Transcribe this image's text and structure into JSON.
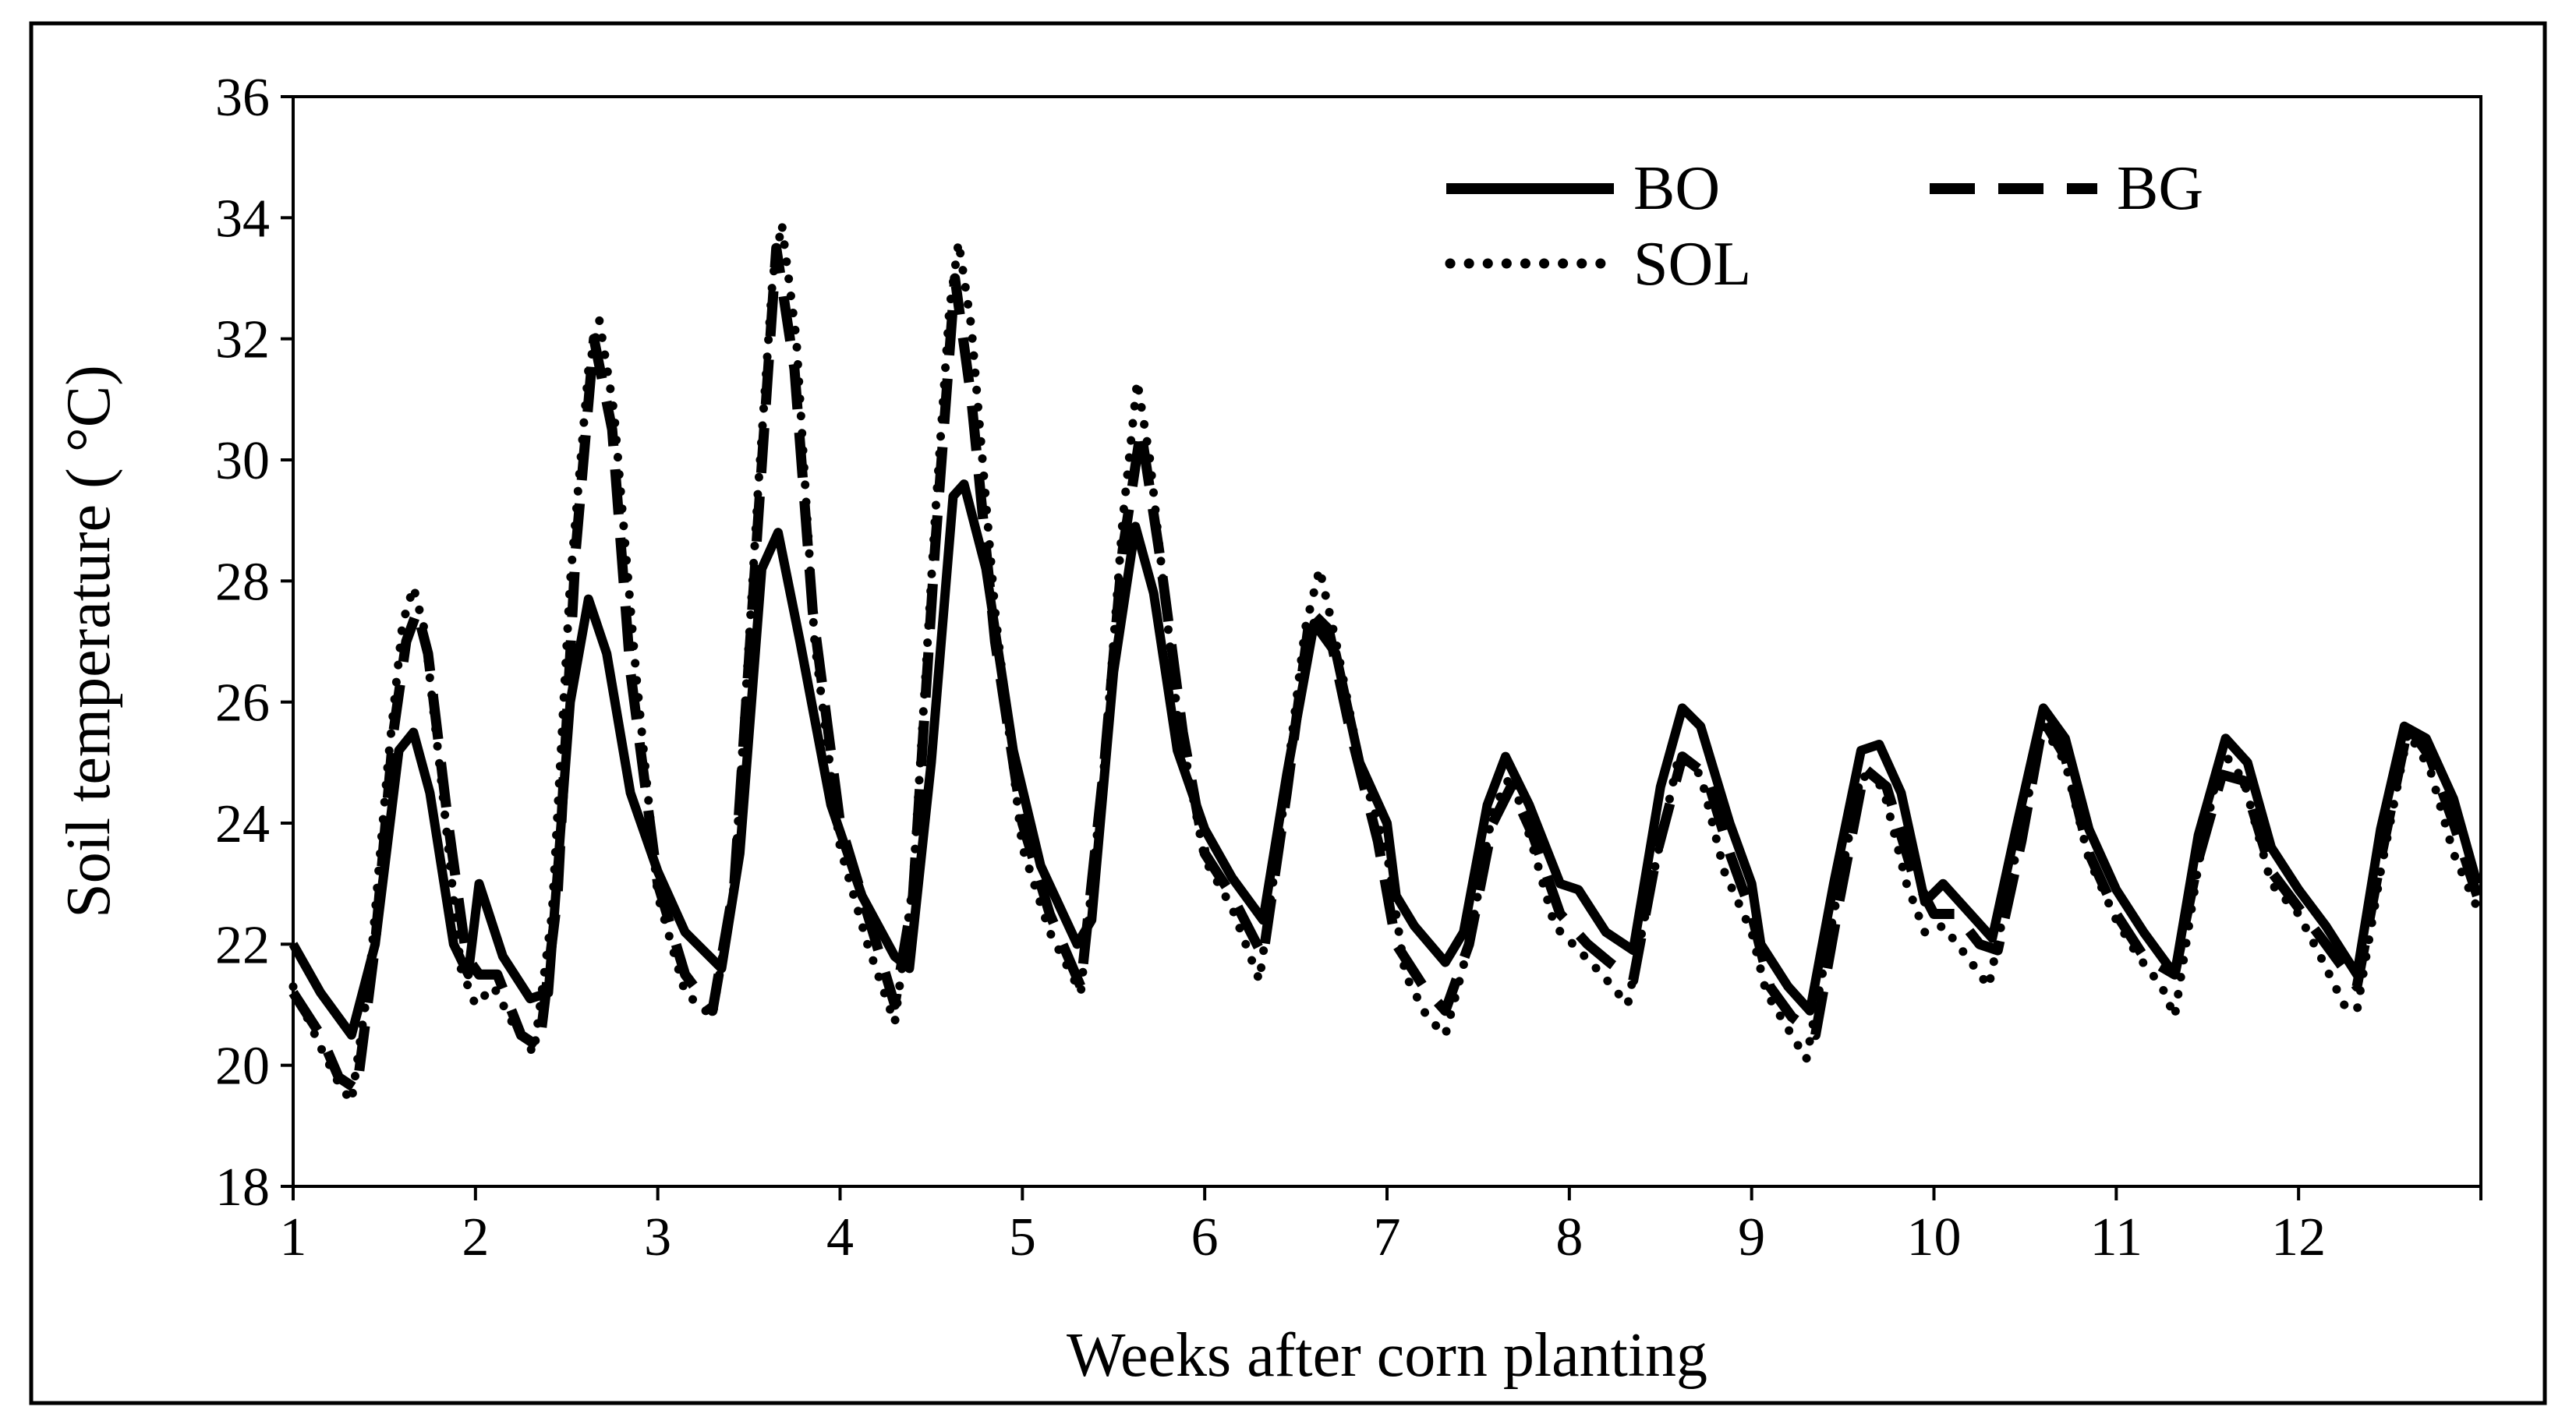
{
  "chart_data": {
    "type": "line",
    "title": "",
    "xlabel": "Weeks after corn planting",
    "ylabel": "Soil temperature ( °C)",
    "xlim": [
      1,
      13
    ],
    "ylim": [
      18,
      36
    ],
    "xticks": [
      1,
      2,
      3,
      4,
      5,
      6,
      7,
      8,
      9,
      10,
      11,
      12
    ],
    "yticks": [
      18,
      20,
      22,
      24,
      26,
      28,
      30,
      32,
      34,
      36
    ],
    "legend": "top-right",
    "series": [
      {
        "name": "BO",
        "style": "solid",
        "points": [
          [
            1.0,
            22.0
          ],
          [
            1.15,
            21.2
          ],
          [
            1.32,
            20.5
          ],
          [
            1.45,
            22.0
          ],
          [
            1.58,
            25.2
          ],
          [
            1.66,
            25.5
          ],
          [
            1.75,
            24.5
          ],
          [
            1.88,
            22.0
          ],
          [
            1.96,
            21.5
          ],
          [
            2.02,
            23.0
          ],
          [
            2.15,
            21.8
          ],
          [
            2.3,
            21.1
          ],
          [
            2.4,
            21.2
          ],
          [
            2.52,
            26.0
          ],
          [
            2.62,
            27.7
          ],
          [
            2.72,
            26.8
          ],
          [
            2.85,
            24.5
          ],
          [
            3.0,
            23.2
          ],
          [
            3.15,
            22.2
          ],
          [
            3.35,
            21.6
          ],
          [
            3.45,
            23.5
          ],
          [
            3.57,
            28.2
          ],
          [
            3.66,
            28.8
          ],
          [
            3.78,
            27.0
          ],
          [
            3.95,
            24.3
          ],
          [
            4.12,
            22.8
          ],
          [
            4.3,
            21.8
          ],
          [
            4.38,
            21.6
          ],
          [
            4.5,
            25.0
          ],
          [
            4.62,
            29.4
          ],
          [
            4.68,
            29.6
          ],
          [
            4.8,
            28.2
          ],
          [
            4.95,
            25.2
          ],
          [
            5.1,
            23.3
          ],
          [
            5.3,
            22.0
          ],
          [
            5.38,
            22.4
          ],
          [
            5.5,
            26.5
          ],
          [
            5.62,
            28.9
          ],
          [
            5.72,
            27.8
          ],
          [
            5.85,
            25.2
          ],
          [
            6.0,
            23.9
          ],
          [
            6.15,
            23.1
          ],
          [
            6.32,
            22.4
          ],
          [
            6.45,
            24.8
          ],
          [
            6.6,
            27.3
          ],
          [
            6.72,
            26.8
          ],
          [
            6.85,
            25.0
          ],
          [
            7.0,
            24.0
          ],
          [
            7.05,
            22.8
          ],
          [
            7.15,
            22.3
          ],
          [
            7.32,
            21.7
          ],
          [
            7.42,
            22.2
          ],
          [
            7.55,
            24.3
          ],
          [
            7.65,
            25.1
          ],
          [
            7.78,
            24.3
          ],
          [
            7.95,
            23.0
          ],
          [
            8.05,
            22.9
          ],
          [
            8.2,
            22.2
          ],
          [
            8.35,
            21.9
          ],
          [
            8.5,
            24.6
          ],
          [
            8.62,
            25.9
          ],
          [
            8.72,
            25.6
          ],
          [
            8.88,
            24.0
          ],
          [
            9.0,
            23.0
          ],
          [
            9.05,
            22.0
          ],
          [
            9.2,
            21.3
          ],
          [
            9.32,
            20.9
          ],
          [
            9.45,
            23.0
          ],
          [
            9.6,
            25.2
          ],
          [
            9.7,
            25.3
          ],
          [
            9.82,
            24.5
          ],
          [
            9.95,
            22.7
          ],
          [
            10.05,
            23.0
          ],
          [
            10.2,
            22.5
          ],
          [
            10.32,
            22.1
          ],
          [
            10.45,
            23.9
          ],
          [
            10.6,
            25.9
          ],
          [
            10.72,
            25.4
          ],
          [
            10.85,
            23.9
          ],
          [
            11.0,
            22.9
          ],
          [
            11.15,
            22.2
          ],
          [
            11.32,
            21.5
          ],
          [
            11.45,
            23.8
          ],
          [
            11.6,
            25.4
          ],
          [
            11.72,
            25.0
          ],
          [
            11.85,
            23.6
          ],
          [
            12.0,
            22.9
          ],
          [
            12.15,
            22.3
          ],
          [
            12.32,
            21.5
          ],
          [
            12.45,
            23.9
          ],
          [
            12.58,
            25.6
          ],
          [
            12.7,
            25.4
          ],
          [
            12.85,
            24.4
          ],
          [
            12.98,
            23.0
          ]
        ]
      },
      {
        "name": "BG",
        "style": "dashed",
        "points": [
          [
            1.0,
            21.2
          ],
          [
            1.15,
            20.5
          ],
          [
            1.25,
            19.8
          ],
          [
            1.35,
            19.6
          ],
          [
            1.45,
            22.0
          ],
          [
            1.55,
            25.5
          ],
          [
            1.62,
            27.0
          ],
          [
            1.68,
            27.5
          ],
          [
            1.74,
            26.8
          ],
          [
            1.85,
            24.0
          ],
          [
            1.95,
            21.8
          ],
          [
            2.02,
            21.5
          ],
          [
            2.12,
            21.5
          ],
          [
            2.25,
            20.5
          ],
          [
            2.35,
            20.3
          ],
          [
            2.45,
            22.8
          ],
          [
            2.55,
            28.5
          ],
          [
            2.65,
            32.0
          ],
          [
            2.75,
            30.5
          ],
          [
            2.85,
            26.5
          ],
          [
            3.0,
            23.0
          ],
          [
            3.15,
            21.5
          ],
          [
            3.3,
            20.9
          ],
          [
            3.42,
            23.0
          ],
          [
            3.55,
            29.0
          ],
          [
            3.65,
            33.5
          ],
          [
            3.75,
            31.5
          ],
          [
            3.85,
            27.5
          ],
          [
            4.0,
            24.0
          ],
          [
            4.15,
            22.5
          ],
          [
            4.3,
            21.0
          ],
          [
            4.4,
            22.8
          ],
          [
            4.52,
            28.5
          ],
          [
            4.63,
            33.0
          ],
          [
            4.72,
            31.0
          ],
          [
            4.85,
            27.0
          ],
          [
            5.0,
            24.0
          ],
          [
            5.15,
            22.5
          ],
          [
            5.32,
            21.3
          ],
          [
            5.45,
            25.0
          ],
          [
            5.55,
            28.5
          ],
          [
            5.65,
            30.5
          ],
          [
            5.75,
            28.5
          ],
          [
            5.88,
            25.5
          ],
          [
            6.0,
            23.5
          ],
          [
            6.15,
            22.8
          ],
          [
            6.32,
            21.8
          ],
          [
            6.45,
            24.5
          ],
          [
            6.58,
            27.5
          ],
          [
            6.68,
            27.2
          ],
          [
            6.8,
            25.5
          ],
          [
            6.95,
            23.7
          ],
          [
            7.05,
            22.0
          ],
          [
            7.2,
            21.3
          ],
          [
            7.32,
            20.9
          ],
          [
            7.45,
            22.0
          ],
          [
            7.58,
            24.0
          ],
          [
            7.68,
            24.6
          ],
          [
            7.8,
            23.8
          ],
          [
            7.95,
            22.5
          ],
          [
            8.1,
            22.0
          ],
          [
            8.22,
            21.7
          ],
          [
            8.35,
            21.4
          ],
          [
            8.48,
            23.5
          ],
          [
            8.62,
            25.1
          ],
          [
            8.75,
            24.8
          ],
          [
            8.88,
            23.5
          ],
          [
            9.0,
            22.5
          ],
          [
            9.1,
            21.3
          ],
          [
            9.22,
            20.8
          ],
          [
            9.35,
            20.5
          ],
          [
            9.48,
            22.7
          ],
          [
            9.62,
            24.9
          ],
          [
            9.74,
            24.6
          ],
          [
            9.88,
            23.2
          ],
          [
            10.0,
            22.5
          ],
          [
            10.12,
            22.5
          ],
          [
            10.25,
            22.0
          ],
          [
            10.35,
            21.9
          ],
          [
            10.48,
            23.7
          ],
          [
            10.6,
            25.7
          ],
          [
            10.72,
            25.1
          ],
          [
            10.85,
            23.5
          ],
          [
            11.0,
            22.5
          ],
          [
            11.15,
            21.8
          ],
          [
            11.32,
            21.5
          ],
          [
            11.45,
            23.4
          ],
          [
            11.58,
            24.8
          ],
          [
            11.7,
            24.7
          ],
          [
            11.85,
            23.2
          ],
          [
            12.0,
            22.6
          ],
          [
            12.15,
            22.0
          ],
          [
            12.32,
            21.3
          ],
          [
            12.45,
            23.4
          ],
          [
            12.6,
            25.6
          ],
          [
            12.72,
            25.1
          ],
          [
            12.85,
            24.0
          ],
          [
            12.98,
            22.8
          ]
        ]
      },
      {
        "name": "SOL",
        "style": "dotted",
        "points": [
          [
            1.0,
            21.3
          ],
          [
            1.15,
            20.3
          ],
          [
            1.25,
            19.7
          ],
          [
            1.32,
            19.4
          ],
          [
            1.42,
            21.5
          ],
          [
            1.52,
            25.0
          ],
          [
            1.6,
            27.3
          ],
          [
            1.66,
            27.9
          ],
          [
            1.72,
            27.2
          ],
          [
            1.82,
            24.5
          ],
          [
            1.92,
            21.6
          ],
          [
            2.0,
            21.0
          ],
          [
            2.1,
            21.3
          ],
          [
            2.22,
            20.6
          ],
          [
            2.32,
            20.2
          ],
          [
            2.42,
            22.5
          ],
          [
            2.52,
            28.0
          ],
          [
            2.62,
            31.5
          ],
          [
            2.68,
            32.3
          ],
          [
            2.76,
            30.8
          ],
          [
            2.88,
            26.5
          ],
          [
            3.0,
            22.8
          ],
          [
            3.15,
            21.2
          ],
          [
            3.3,
            20.8
          ],
          [
            3.42,
            23.0
          ],
          [
            3.55,
            29.5
          ],
          [
            3.63,
            33.0
          ],
          [
            3.68,
            33.9
          ],
          [
            3.76,
            32.0
          ],
          [
            3.86,
            27.0
          ],
          [
            4.0,
            23.6
          ],
          [
            4.15,
            22.0
          ],
          [
            4.3,
            20.7
          ],
          [
            4.4,
            23.0
          ],
          [
            4.52,
            29.0
          ],
          [
            4.6,
            32.5
          ],
          [
            4.65,
            33.6
          ],
          [
            4.72,
            32.2
          ],
          [
            4.85,
            27.5
          ],
          [
            5.0,
            23.6
          ],
          [
            5.15,
            22.2
          ],
          [
            5.32,
            21.2
          ],
          [
            5.45,
            25.0
          ],
          [
            5.55,
            29.0
          ],
          [
            5.63,
            31.3
          ],
          [
            5.7,
            30.0
          ],
          [
            5.85,
            25.8
          ],
          [
            6.0,
            23.4
          ],
          [
            6.15,
            22.6
          ],
          [
            6.3,
            21.4
          ],
          [
            6.42,
            24.0
          ],
          [
            6.55,
            27.2
          ],
          [
            6.63,
            28.2
          ],
          [
            6.72,
            27.0
          ],
          [
            6.85,
            25.0
          ],
          [
            7.0,
            23.5
          ],
          [
            7.1,
            21.5
          ],
          [
            7.22,
            20.8
          ],
          [
            7.32,
            20.5
          ],
          [
            7.45,
            22.0
          ],
          [
            7.58,
            24.2
          ],
          [
            7.68,
            24.8
          ],
          [
            7.8,
            23.6
          ],
          [
            7.92,
            22.3
          ],
          [
            8.02,
            22.0
          ],
          [
            8.18,
            21.5
          ],
          [
            8.32,
            21.0
          ],
          [
            8.45,
            23.0
          ],
          [
            8.6,
            25.1
          ],
          [
            8.72,
            24.8
          ],
          [
            8.85,
            23.2
          ],
          [
            9.0,
            22.2
          ],
          [
            9.08,
            21.2
          ],
          [
            9.2,
            20.6
          ],
          [
            9.3,
            20.1
          ],
          [
            9.45,
            22.5
          ],
          [
            9.6,
            24.8
          ],
          [
            9.72,
            24.6
          ],
          [
            9.85,
            23.0
          ],
          [
            9.95,
            22.2
          ],
          [
            10.05,
            22.3
          ],
          [
            10.18,
            21.8
          ],
          [
            10.3,
            21.3
          ],
          [
            10.45,
            23.5
          ],
          [
            10.6,
            25.6
          ],
          [
            10.72,
            25.0
          ],
          [
            10.85,
            23.4
          ],
          [
            11.0,
            22.4
          ],
          [
            11.12,
            21.8
          ],
          [
            11.25,
            21.3
          ],
          [
            11.32,
            20.8
          ],
          [
            11.45,
            23.3
          ],
          [
            11.58,
            25.2
          ],
          [
            11.7,
            24.7
          ],
          [
            11.85,
            23.0
          ],
          [
            12.0,
            22.5
          ],
          [
            12.12,
            21.8
          ],
          [
            12.25,
            21.0
          ],
          [
            12.32,
            20.9
          ],
          [
            12.45,
            23.2
          ],
          [
            12.6,
            25.5
          ],
          [
            12.72,
            24.9
          ],
          [
            12.85,
            23.5
          ],
          [
            12.98,
            22.6
          ]
        ]
      }
    ]
  }
}
